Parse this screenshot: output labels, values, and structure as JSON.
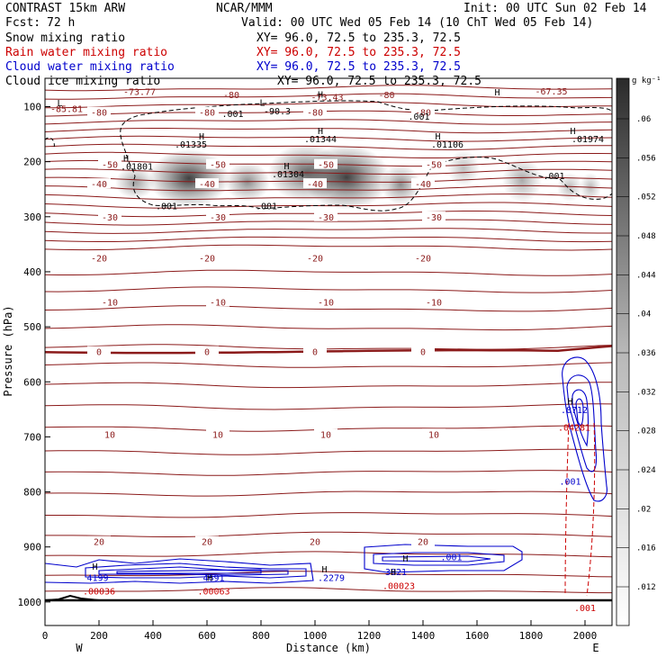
{
  "chart_data": {
    "type": "contour",
    "header": {
      "model": "CONTRAST 15km ARW",
      "center": "NCAR/MMM",
      "init": "Init: 00 UTC Sun 02 Feb 14",
      "fcst_label": "Fcst:",
      "fcst_value": "72 h",
      "valid": "Valid: 00 UTC Wed 05 Feb 14 (10 ChT Wed 05 Feb 14)"
    },
    "fields": [
      {
        "name": "Snow mixing ratio",
        "xy": "XY=  96.0, 72.5 to 235.3, 72.5",
        "color": "#000000"
      },
      {
        "name": "Rain water mixing ratio",
        "xy": "XY=  96.0, 72.5 to 235.3, 72.5",
        "color": "#cc0000"
      },
      {
        "name": "Cloud water mixing ratio",
        "xy": "XY=  96.0, 72.5 to 235.3, 72.5",
        "color": "#0000cc"
      },
      {
        "name": "Cloud ice mixing ratio",
        "xy": "XY=  96.0, 72.5 to 235.3, 72.5",
        "color": "#000000"
      }
    ],
    "xlabel": "Distance (km)",
    "ylabel": "Pressure (hPa)",
    "xlim": [
      0,
      2100
    ],
    "ylim": [
      1050,
      70
    ],
    "xticks": [
      0,
      200,
      400,
      600,
      800,
      1000,
      1200,
      1400,
      1600,
      1800,
      2000
    ],
    "yticks": [
      100,
      200,
      300,
      400,
      500,
      600,
      700,
      800,
      900,
      1000
    ],
    "endpoints": {
      "left": "W",
      "right": "E"
    },
    "colorbar": {
      "unit": "g kg⁻¹",
      "ticks": [
        ".012",
        ".016",
        ".02",
        ".024",
        ".028",
        ".032",
        ".036",
        ".04",
        ".044",
        ".048",
        ".052",
        ".056",
        ".06"
      ]
    },
    "temperature_contours": [
      {
        "label": "-80",
        "p": 110
      },
      {
        "label": "-50",
        "p": 205
      },
      {
        "label": "-40",
        "p": 240
      },
      {
        "label": "-30",
        "p": 300
      },
      {
        "label": "-20",
        "p": 375
      },
      {
        "label": "-10",
        "p": 455
      },
      {
        "label": "0",
        "p": 545
      },
      {
        "label": "10",
        "p": 695
      },
      {
        "label": "20",
        "p": 890
      }
    ],
    "contour_labels": [
      {
        "text": "-73.77",
        "x": 350,
        "p": 72,
        "color": "#8b1a1a"
      },
      {
        "text": "-85.81",
        "x": 80,
        "p": 103,
        "color": "#8b1a1a"
      },
      {
        "text": "-80",
        "x": 690,
        "p": 78,
        "color": "#8b1a1a"
      },
      {
        "text": "-73.43",
        "x": 1045,
        "p": 82,
        "color": "#8b1a1a"
      },
      {
        "text": "-80",
        "x": 1265,
        "p": 78,
        "color": "#8b1a1a"
      },
      {
        "text": "-67.35",
        "x": 1875,
        "p": 71,
        "color": "#8b1a1a"
      },
      {
        "text": "-90.3",
        "x": 860,
        "p": 107,
        "color": "#000000"
      },
      {
        "text": ".001",
        "x": 695,
        "p": 112,
        "color": "#000000"
      },
      {
        "text": ".001",
        "x": 1385,
        "p": 117,
        "color": "#000000"
      },
      {
        "text": ".01335",
        "x": 540,
        "p": 168,
        "color": "#000000"
      },
      {
        "text": ".01344",
        "x": 1020,
        "p": 158,
        "color": "#000000"
      },
      {
        "text": ".01106",
        "x": 1490,
        "p": 168,
        "color": "#000000"
      },
      {
        "text": ".01974",
        "x": 2010,
        "p": 158,
        "color": "#000000"
      },
      {
        "text": ".01801",
        "x": 340,
        "p": 208,
        "color": "#000000"
      },
      {
        "text": ".01304",
        "x": 900,
        "p": 222,
        "color": "#000000"
      },
      {
        "text": ".001",
        "x": 1885,
        "p": 225,
        "color": "#000000"
      },
      {
        "text": ".001",
        "x": 450,
        "p": 280,
        "color": "#000000"
      },
      {
        "text": ".001",
        "x": 820,
        "p": 280,
        "color": "#000000"
      },
      {
        "text": ".8712",
        "x": 1960,
        "p": 650,
        "color": "#0000cc"
      },
      {
        "text": ".001",
        "x": 1945,
        "p": 780,
        "color": "#0000cc"
      },
      {
        "text": ".04281",
        "x": 1960,
        "p": 682,
        "color": "#cc0000"
      },
      {
        "text": "4199",
        "x": 195,
        "p": 955,
        "color": "#0000cc"
      },
      {
        "text": "4691",
        "x": 625,
        "p": 955,
        "color": "#0000cc"
      },
      {
        "text": ".2279",
        "x": 1060,
        "p": 955,
        "color": "#0000cc"
      },
      {
        "text": "3921",
        "x": 1300,
        "p": 945,
        "color": "#0000cc"
      },
      {
        "text": ".001",
        "x": 1505,
        "p": 918,
        "color": "#0000cc"
      },
      {
        "text": ".00036",
        "x": 200,
        "p": 980,
        "color": "#cc0000"
      },
      {
        "text": ".00063",
        "x": 625,
        "p": 980,
        "color": "#cc0000"
      },
      {
        "text": ".00023",
        "x": 1310,
        "p": 970,
        "color": "#cc0000"
      },
      {
        "text": ".001",
        "x": 2000,
        "p": 1010,
        "color": "#cc0000"
      }
    ],
    "extrema_markers": [
      {
        "text": "L",
        "x": 55,
        "p": 93
      },
      {
        "text": "L",
        "x": 805,
        "p": 92
      },
      {
        "text": "H",
        "x": 1020,
        "p": 77
      },
      {
        "text": "H",
        "x": 1675,
        "p": 73
      },
      {
        "text": "H",
        "x": 580,
        "p": 153
      },
      {
        "text": "H",
        "x": 1020,
        "p": 143
      },
      {
        "text": "H",
        "x": 1455,
        "p": 153
      },
      {
        "text": "H",
        "x": 1955,
        "p": 143
      },
      {
        "text": "H",
        "x": 300,
        "p": 193
      },
      {
        "text": "H",
        "x": 895,
        "p": 207
      },
      {
        "text": "H",
        "x": 1945,
        "p": 635
      },
      {
        "text": "H",
        "x": 185,
        "p": 935
      },
      {
        "text": "H",
        "x": 610,
        "p": 955
      },
      {
        "text": "H",
        "x": 1035,
        "p": 940
      },
      {
        "text": "H",
        "x": 1335,
        "p": 920
      },
      {
        "text": "H",
        "x": 1290,
        "p": 945
      }
    ]
  }
}
